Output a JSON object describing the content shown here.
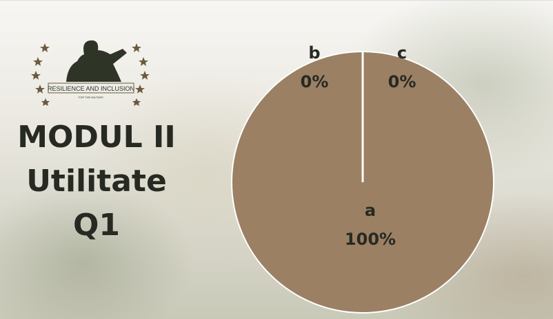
{
  "logo": {
    "title": "RESILIENCE AND INCLUSION",
    "subtitle": "FOR THE MILITARY"
  },
  "chart_data": {
    "type": "pie",
    "title": [
      "MODUL II",
      "Utilitate",
      "Q1"
    ],
    "categories": [
      "a",
      "b",
      "c"
    ],
    "values": [
      100,
      0,
      0
    ],
    "value_labels": [
      "100%",
      "0%",
      "0%"
    ],
    "colors": [
      "#9c8064",
      "#9c8064",
      "#9c8064"
    ]
  }
}
